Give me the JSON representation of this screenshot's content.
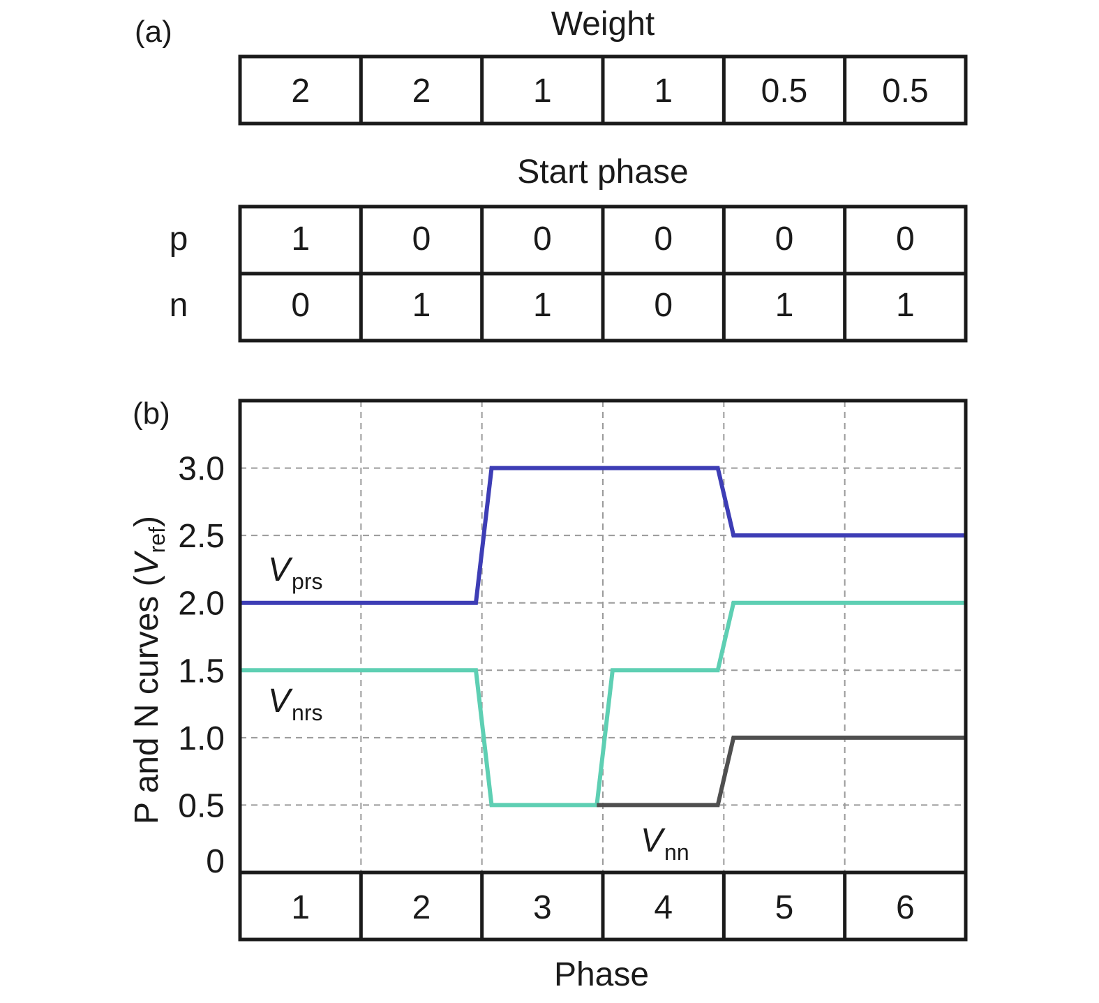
{
  "chart_data": [
    {
      "type": "table",
      "panel_label": "(a)",
      "weight_table": {
        "title": "Weight",
        "values": [
          "2",
          "2",
          "1",
          "1",
          "0.5",
          "0.5"
        ]
      },
      "start_phase_table": {
        "title": "Start phase",
        "rows": [
          {
            "label": "p",
            "values": [
              "1",
              "0",
              "0",
              "0",
              "0",
              "0"
            ]
          },
          {
            "label": "n",
            "values": [
              "0",
              "1",
              "1",
              "0",
              "1",
              "1"
            ]
          }
        ]
      }
    },
    {
      "type": "line",
      "panel_label": "(b)",
      "xlabel": "Phase",
      "ylabel": {
        "main": "P and N curves (",
        "sym": "V",
        "sub": "ref",
        "close": ")"
      },
      "ylim": [
        0,
        3.5
      ],
      "yticks": [
        {
          "value": 0,
          "label": "0"
        },
        {
          "value": 0.5,
          "label": "0.5"
        },
        {
          "value": 1.0,
          "label": "1.0"
        },
        {
          "value": 1.5,
          "label": "1.5"
        },
        {
          "value": 2.0,
          "label": "2.0"
        },
        {
          "value": 2.5,
          "label": "2.5"
        },
        {
          "value": 3.0,
          "label": "3.0"
        }
      ],
      "xlim": [
        0,
        6
      ],
      "categories": [
        "1",
        "2",
        "3",
        "4",
        "5",
        "6"
      ],
      "grid": true,
      "series": [
        {
          "name": "V_prs",
          "sym": "V",
          "sub": "prs",
          "color": "#3d3db5",
          "x": [
            0,
            1.95,
            2.08,
            3.95,
            4.08,
            6
          ],
          "y": [
            2.0,
            2.0,
            3.0,
            3.0,
            2.5,
            2.5
          ]
        },
        {
          "name": "V_nrs",
          "sym": "V",
          "sub": "nrs",
          "color": "#5ecfb3",
          "x": [
            0,
            1.95,
            2.08,
            2.95,
            3.08,
            3.95,
            4.08,
            6
          ],
          "y": [
            1.5,
            1.5,
            0.5,
            0.5,
            1.5,
            1.5,
            2.0,
            2.0
          ]
        },
        {
          "name": "V_nn",
          "sym": "V",
          "sub": "nn",
          "color": "#4f4f4f",
          "x": [
            2.95,
            3.95,
            4.08,
            6
          ],
          "y": [
            0.5,
            0.5,
            1.0,
            1.0
          ]
        }
      ]
    }
  ],
  "colors": {
    "frame": "#1a1a1a",
    "grid": "#9a9a9a"
  }
}
